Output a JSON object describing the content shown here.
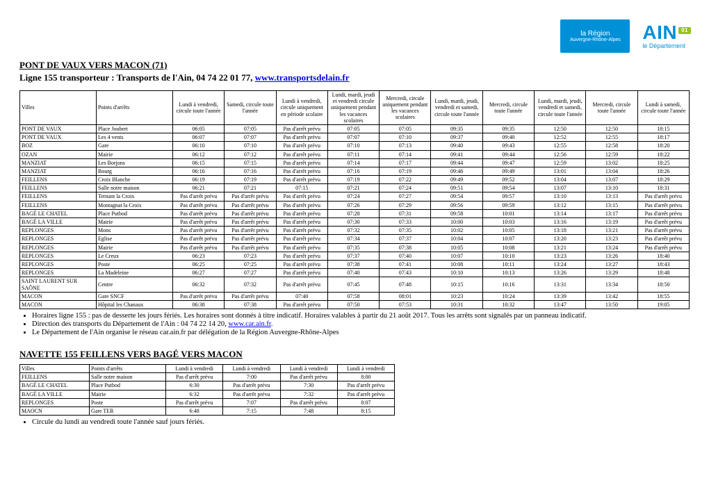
{
  "logos": {
    "region_line1": "la Région",
    "region_line2": "Auvergne-Rhône-Alpes",
    "ain_big": "AIN",
    "ain_badge": "01",
    "ain_sub": "le Département"
  },
  "title": "PONT DE VAUX VERS MACON (71)",
  "subtitle_prefix": "Ligne 155 transporteur : Transports de l'Ain, 04 74 22 01 77, ",
  "subtitle_link": "www.transportsdelain.fr",
  "main_table": {
    "headers": [
      "Villes",
      "Points d'arrêts",
      "Lundi à vendredi, circule toute l'année",
      "Samedi, circule toute l'année",
      "Lundi à vendredi, circule uniquement en période scolaire",
      "Lundi, mardi, jeudi et vendredi circule uniquement pendant les vacances scolaires",
      "Mercredi, circule uniquement pendant les vacances scolaires",
      "Lundi, mardi, jeudi, vendredi et samedi, circule toute l'année",
      "Mercredi, circule toute l'année",
      "Lundi, mardi, jeudi, vendredi et samedi, circule toute l'année",
      "Mercredi, circule toute l'année",
      "Lundi à samedi, circule toute l'année"
    ],
    "rows": [
      [
        "PONT DE VAUX",
        "Place Joubert",
        "06:05",
        "07:05",
        "Pas d'arrêt prévu",
        "07:05",
        "07:05",
        "09:35",
        "09:35",
        "12:50",
        "12:50",
        "18:15"
      ],
      [
        "PONT DE VAUX",
        "Les 4 vents",
        "06:07",
        "07:07",
        "Pas d'arrêt prévu",
        "07:07",
        "07:10",
        "09:37",
        "09:40",
        "12:52",
        "12:55",
        "18:17"
      ],
      [
        "BOZ",
        "Gare",
        "06:10",
        "07:10",
        "Pas d'arrêt prévu",
        "07:10",
        "07:13",
        "09:40",
        "09:43",
        "12:55",
        "12:58",
        "18:20"
      ],
      [
        "OZAN",
        "Mairie",
        "06:12",
        "07:12",
        "Pas d'arrêt prévu",
        "07:11",
        "07:14",
        "09:41",
        "09:44",
        "12:56",
        "12:59",
        "18:22"
      ],
      [
        "MANZIAT",
        "Les Borjons",
        "06:15",
        "07:15",
        "Pas d'arrêt prévu",
        "07:14",
        "07:17",
        "09:44",
        "09:47",
        "12:59",
        "13:02",
        "18:25"
      ],
      [
        "MANZIAT",
        "Bourg",
        "06:16",
        "07:16",
        "Pas d'arrêt prévu",
        "07:16",
        "07:19",
        "09:46",
        "09:49",
        "13:01",
        "13:04",
        "18:26"
      ],
      [
        "FEILLENS",
        "Croix Blanche",
        "06:19",
        "07:19",
        "Pas d'arrêt prévu",
        "07:19",
        "07:22",
        "09:49",
        "09:52",
        "13:04",
        "13:07",
        "18:29"
      ],
      [
        "FEILLENS",
        "Salle notre maison",
        "06:21",
        "07:21",
        "07:15",
        "07:21",
        "07:24",
        "09:51",
        "09:54",
        "13:07",
        "13:10",
        "18:31"
      ],
      [
        "FEILLENS",
        "Ternant la Croix",
        "Pas d'arrêt prévu",
        "Pas d'arrêt prévu",
        "Pas d'arrêt prévu",
        "07:24",
        "07:27",
        "09:54",
        "09:57",
        "13:10",
        "13:13",
        "Pas d'arrêt prévu"
      ],
      [
        "FEILLENS",
        "Montagnat la Croix",
        "Pas d'arrêt prévu",
        "Pas d'arrêt prévu",
        "Pas d'arrêt prévu",
        "07:26",
        "07:29",
        "09:56",
        "09:59",
        "13:12",
        "13:15",
        "Pas d'arrêt prévu"
      ],
      [
        "BAGÉ LE CHATEL",
        "Place Putbod",
        "Pas d'arrêt prévu",
        "Pas d'arrêt prévu",
        "Pas d'arrêt prévu",
        "07:28",
        "07:31",
        "09:58",
        "10:01",
        "13:14",
        "13:17",
        "Pas d'arrêt prévu"
      ],
      [
        "BAGÉ LA VILLE",
        "Mairie",
        "Pas d'arrêt prévu",
        "Pas d'arrêt prévu",
        "Pas d'arrêt prévu",
        "07:30",
        "07:33",
        "10:00",
        "10:03",
        "13:16",
        "13:19",
        "Pas d'arrêt prévu"
      ],
      [
        "REPLONGES",
        "Mons",
        "Pas d'arrêt prévu",
        "Pas d'arrêt prévu",
        "Pas d'arrêt prévu",
        "07:32",
        "07:35",
        "10:02",
        "10:05",
        "13:18",
        "13:21",
        "Pas d'arrêt prévu"
      ],
      [
        "REPLONGES",
        "Eglise",
        "Pas d'arrêt prévu",
        "Pas d'arrêt prévu",
        "Pas d'arrêt prévu",
        "07:34",
        "07:37",
        "10:04",
        "10:07",
        "13:20",
        "13:23",
        "Pas d'arrêt prévu"
      ],
      [
        "REPLONGES",
        "Mairie",
        "Pas d'arrêt prévu",
        "Pas d'arrêt prévu",
        "Pas d'arrêt prévu",
        "07:35",
        "07:38",
        "10:05",
        "10:08",
        "13:21",
        "13:24",
        "Pas d'arrêt prévu"
      ],
      [
        "REPLONGES",
        "Le Creux",
        "06:23",
        "07:23",
        "Pas d'arrêt prévu",
        "07:37",
        "07:40",
        "10:07",
        "10:10",
        "13:23",
        "13:26",
        "18:40"
      ],
      [
        "REPLONGES",
        "Poste",
        "06:25",
        "07:25",
        "Pas d'arrêt prévu",
        "07:38",
        "07:41",
        "10:08",
        "10:11",
        "13:24",
        "13:27",
        "18:43"
      ],
      [
        "REPLONGES",
        "La Madeleine",
        "06:27",
        "07:27",
        "Pas d'arrêt prévu",
        "07:40",
        "07:43",
        "10:10",
        "10:13",
        "13:26",
        "13:29",
        "18:48"
      ],
      [
        "SAINT LAURENT SUR SAÔNE",
        "Centre",
        "06:32",
        "07:32",
        "Pas d'arrêt prévu",
        "07:45",
        "07:48",
        "10:15",
        "10:16",
        "13:31",
        "13:34",
        "18:50"
      ],
      [
        "MACON",
        "Gare SNCF",
        "Pas d'arrêt prévu",
        "Pas d'arrêt prévu",
        "07:40",
        "07:58",
        "08:01",
        "10:23",
        "10:24",
        "13:39",
        "13:42",
        "18:55"
      ],
      [
        "MACON",
        "Hôpital les Chanaux",
        "06:38",
        "07:38",
        "Pas d'arrêt prévu",
        "07:50",
        "07:53",
        "10:31",
        "10:32",
        "13:47",
        "13:50",
        "19:05"
      ]
    ]
  },
  "notes": [
    "Horaires ligne 155 : pas de desserte les jours fériés. Les horaires sont donnés à titre indicatif. Horaires valables à partir du 21 août 2017. Tous les arrêts sont signalés par un panneau indicatif.",
    "Direction des transports du Département de l'Ain : 04 74 22 14 20, ",
    "Le Département de l'Ain organise le réseau car.ain.fr par délégation de la Région Auvergne-Rhône-Alpes"
  ],
  "notes_link": "www.car.ain.fr",
  "shuttle_title": "NAVETTE 155 FEILLENS VERS BAGÉ VERS MACON",
  "shuttle_table": {
    "headers": [
      "Villes",
      "Points d'arrêts",
      "Lundi à vendredi",
      "Lundi à vendredi",
      "Lundi à vendredi",
      "Lundi à vendredi"
    ],
    "rows": [
      [
        "FEILLENS",
        "Salle notre maison",
        "Pas d'arrêt prévu",
        "7:00",
        "Pas d'arrêt prévu",
        "8:00"
      ],
      [
        "BAGÉ LE CHATEL",
        "Place Putbod",
        "6:30",
        "Pas d'arrêt prévu",
        "7:30",
        "Pas d'arrêt prévu"
      ],
      [
        "BAGÉ LA VILLE",
        "Mairie",
        "6:32",
        "Pas d'arrêt prévu",
        "7:32",
        "Pas d'arrêt prévu"
      ],
      [
        "REPLONGES",
        "Poste",
        "Pas d'arrêt prévu",
        "7:07",
        "Pas d'arrêt prévu",
        "8:07"
      ],
      [
        "MAOCN",
        "Gare TER",
        "6:48",
        "7:15",
        "7:48",
        "8:15"
      ]
    ]
  },
  "shuttle_note": "Circule du lundi au vendredi toute l'année sauf jours fériés."
}
